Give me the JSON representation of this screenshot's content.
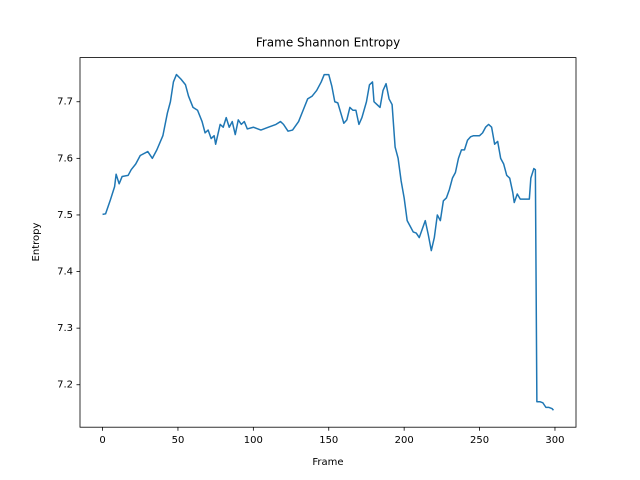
{
  "chart_data": {
    "type": "line",
    "title": "Frame Shannon Entropy",
    "x_label": "Frame",
    "y_label": "Entropy",
    "x": [
      0,
      2,
      5,
      8,
      9,
      11,
      13,
      17,
      19,
      22,
      25,
      30,
      33,
      36,
      40,
      43,
      45,
      47,
      49,
      52,
      55,
      57,
      60,
      63,
      66,
      68,
      70,
      72,
      74,
      75,
      78,
      80,
      82,
      84,
      86,
      88,
      90,
      92,
      94,
      96,
      100,
      105,
      110,
      115,
      118,
      120,
      123,
      126,
      130,
      133,
      136,
      139,
      142,
      145,
      147,
      150,
      152,
      154,
      156,
      158,
      160,
      162,
      164,
      166,
      168,
      170,
      172,
      175,
      177,
      179,
      180,
      182,
      184,
      186,
      188,
      190,
      192,
      194,
      196,
      198,
      200,
      202,
      204,
      206,
      208,
      210,
      212,
      214,
      216,
      218,
      220,
      222,
      224,
      226,
      228,
      230,
      232,
      234,
      236,
      238,
      240,
      242,
      244,
      246,
      250,
      252,
      254,
      256,
      258,
      260,
      262,
      264,
      266,
      268,
      270,
      272,
      273,
      275,
      277,
      280,
      283,
      284,
      286,
      287,
      288,
      290,
      292,
      294,
      296,
      298,
      299
    ],
    "series": [
      {
        "color": "#1f77b4",
        "values": [
          7.501,
          7.502,
          7.525,
          7.55,
          7.572,
          7.555,
          7.568,
          7.57,
          7.58,
          7.59,
          7.605,
          7.612,
          7.6,
          7.615,
          7.64,
          7.68,
          7.7,
          7.735,
          7.748,
          7.74,
          7.73,
          7.71,
          7.69,
          7.685,
          7.665,
          7.645,
          7.65,
          7.635,
          7.64,
          7.625,
          7.66,
          7.655,
          7.672,
          7.655,
          7.665,
          7.642,
          7.668,
          7.66,
          7.665,
          7.652,
          7.655,
          7.65,
          7.655,
          7.66,
          7.665,
          7.66,
          7.648,
          7.65,
          7.665,
          7.685,
          7.705,
          7.71,
          7.72,
          7.735,
          7.748,
          7.748,
          7.728,
          7.7,
          7.698,
          7.68,
          7.662,
          7.668,
          7.69,
          7.685,
          7.685,
          7.66,
          7.672,
          7.7,
          7.73,
          7.735,
          7.7,
          7.695,
          7.69,
          7.72,
          7.732,
          7.705,
          7.695,
          7.62,
          7.6,
          7.56,
          7.53,
          7.49,
          7.48,
          7.47,
          7.468,
          7.46,
          7.475,
          7.49,
          7.465,
          7.437,
          7.46,
          7.5,
          7.49,
          7.525,
          7.53,
          7.545,
          7.565,
          7.575,
          7.6,
          7.615,
          7.615,
          7.632,
          7.638,
          7.64,
          7.64,
          7.645,
          7.655,
          7.66,
          7.655,
          7.625,
          7.63,
          7.6,
          7.59,
          7.57,
          7.565,
          7.54,
          7.522,
          7.537,
          7.528,
          7.528,
          7.528,
          7.565,
          7.582,
          7.58,
          7.17,
          7.17,
          7.168,
          7.16,
          7.16,
          7.158,
          7.155
        ]
      }
    ],
    "xlim": [
      -14.95,
      313.95
    ],
    "ylim": [
      7.125,
      7.778
    ],
    "xticks": [
      0,
      50,
      100,
      150,
      200,
      250,
      300
    ],
    "yticks": [
      7.2,
      7.3,
      7.4,
      7.5,
      7.6,
      7.7
    ]
  }
}
